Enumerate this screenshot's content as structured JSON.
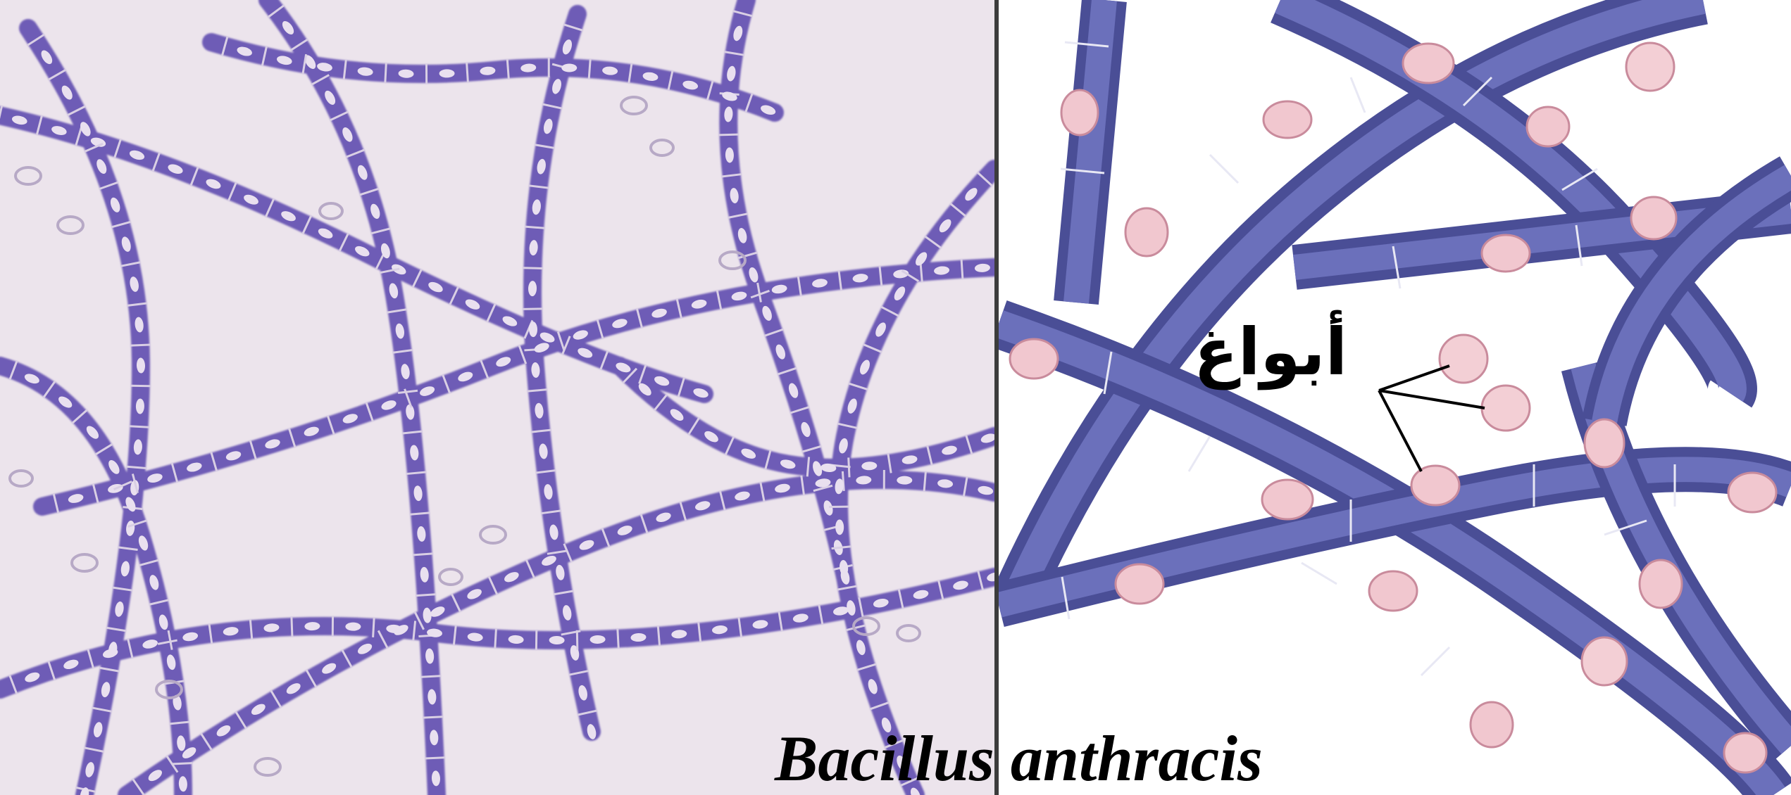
{
  "labels": {
    "spores": "أبواغ",
    "species": "Bacillus anthracis"
  },
  "panels": {
    "left": {
      "kind": "micrograph",
      "background": "#ece4ec",
      "stain": "#6e5cb6"
    },
    "right": {
      "kind": "illustration",
      "background": "#ffffff",
      "rod": "#5b5fa8",
      "spore": "#f1c7cf"
    }
  }
}
